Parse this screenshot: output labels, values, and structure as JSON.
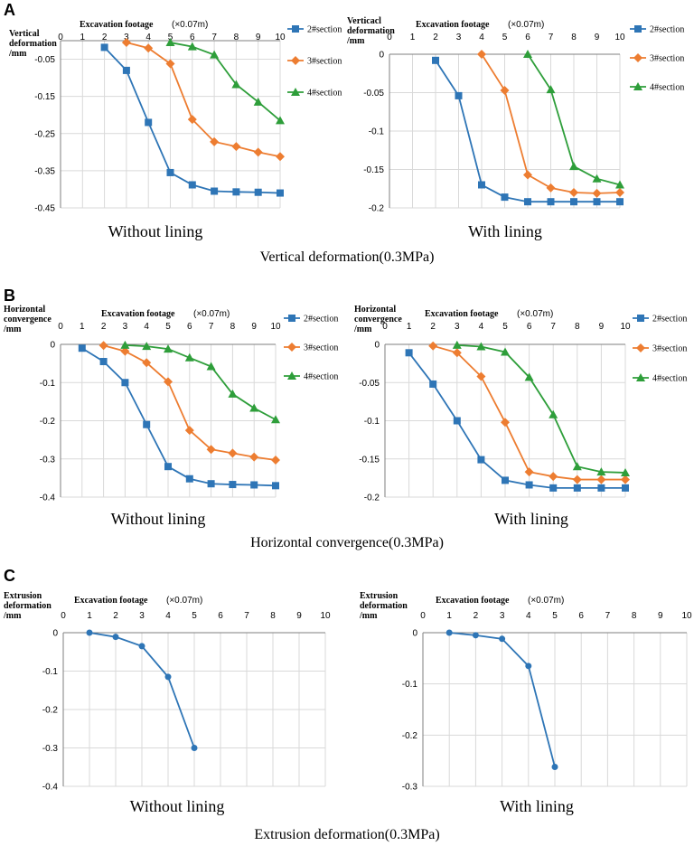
{
  "colors": {
    "s2": "#2E75B6",
    "s3": "#ED7D31",
    "s4": "#2E9E3A",
    "grid": "#D9D9D9",
    "axis": "#7F7F7F"
  },
  "panel_letters": [
    "A",
    "B",
    "C"
  ],
  "section_titles": [
    "Vertical deformation(0.3MPa)",
    "Horizontal convergence(0.3MPa)",
    "Extrusion deformation(0.3MPa)"
  ],
  "chart_data": [
    {
      "type": "line",
      "panel": "A",
      "subtitle": "Without lining",
      "xlabel": "Excavation footage",
      "xlabel_unit": "(×0.07m)",
      "ylabel_lines": [
        "Vertical",
        "deformation",
        "/mm"
      ],
      "xlim": [
        0,
        10
      ],
      "ylim": [
        -0.45,
        0
      ],
      "xticks": [
        0,
        1,
        2,
        3,
        4,
        5,
        6,
        7,
        8,
        9,
        10
      ],
      "yticks": [
        -0.45,
        -0.35,
        -0.25,
        -0.15,
        -0.05
      ],
      "ytick_labels": [
        "-0.45",
        "-0.35",
        "-0.25",
        "-0.15",
        "-0.05"
      ],
      "x_axis_label_0": "0",
      "series": [
        {
          "name": "2#section",
          "marker": "square",
          "x": [
            2,
            3,
            4,
            5,
            6,
            7,
            8,
            9,
            10
          ],
          "values": [
            -0.018,
            -0.08,
            -0.22,
            -0.355,
            -0.388,
            -0.405,
            -0.407,
            -0.408,
            -0.41
          ]
        },
        {
          "name": "3#section",
          "marker": "diamond",
          "x": [
            3,
            4,
            5,
            6,
            7,
            8,
            9,
            10
          ],
          "values": [
            -0.005,
            -0.02,
            -0.062,
            -0.212,
            -0.272,
            -0.285,
            -0.3,
            -0.312
          ]
        },
        {
          "name": "4#section",
          "marker": "triangle",
          "x": [
            5,
            6,
            7,
            8,
            9,
            10
          ],
          "values": [
            -0.005,
            -0.016,
            -0.038,
            -0.118,
            -0.165,
            -0.215
          ]
        }
      ]
    },
    {
      "type": "line",
      "panel": "A",
      "subtitle": "With lining",
      "xlabel": "Excavation footage",
      "xlabel_unit": "(×0.07m)",
      "ylabel_lines": [
        "Verticacl",
        "deformation",
        "/mm"
      ],
      "xlim": [
        0,
        10
      ],
      "ylim": [
        -0.2,
        0
      ],
      "xticks": [
        0,
        1,
        2,
        3,
        4,
        5,
        6,
        7,
        8,
        9,
        10
      ],
      "yticks": [
        0,
        -0.05,
        -0.1,
        -0.15,
        -0.2
      ],
      "ytick_labels": [
        "0",
        "-0.05",
        "-0.1",
        "-0.15",
        "-0.2"
      ],
      "series": [
        {
          "name": "2#section",
          "marker": "square",
          "x": [
            2,
            3,
            4,
            5,
            6,
            7,
            8,
            9,
            10
          ],
          "values": [
            -0.008,
            -0.054,
            -0.17,
            -0.186,
            -0.192,
            -0.192,
            -0.192,
            -0.192,
            -0.192
          ]
        },
        {
          "name": "3#section",
          "marker": "diamond",
          "x": [
            4,
            5,
            6,
            7,
            8,
            9,
            10
          ],
          "values": [
            0,
            -0.047,
            -0.157,
            -0.174,
            -0.18,
            -0.181,
            -0.18
          ]
        },
        {
          "name": "4#section",
          "marker": "triangle",
          "x": [
            6,
            7,
            8,
            9,
            10
          ],
          "values": [
            0,
            -0.046,
            -0.146,
            -0.162,
            -0.17
          ]
        }
      ]
    },
    {
      "type": "line",
      "panel": "B",
      "subtitle": "Without lining",
      "xlabel": "Excavation footage",
      "xlabel_unit": "(×0.07m)",
      "ylabel_lines": [
        "Horizontal",
        "convergence",
        "/mm"
      ],
      "xlim": [
        0,
        10
      ],
      "ylim": [
        -0.4,
        0
      ],
      "xticks": [
        0,
        1,
        2,
        3,
        4,
        5,
        6,
        7,
        8,
        9,
        10
      ],
      "yticks": [
        0,
        -0.1,
        -0.2,
        -0.3,
        -0.4
      ],
      "ytick_labels": [
        "0",
        "-0.1",
        "-0.2",
        "-0.3",
        "-0.4"
      ],
      "series": [
        {
          "name": "2#section",
          "marker": "square",
          "x": [
            1,
            2,
            3,
            4,
            5,
            6,
            7,
            8,
            9,
            10
          ],
          "values": [
            -0.01,
            -0.045,
            -0.1,
            -0.21,
            -0.32,
            -0.352,
            -0.365,
            -0.367,
            -0.368,
            -0.37
          ]
        },
        {
          "name": "3#section",
          "marker": "diamond",
          "x": [
            2,
            3,
            4,
            5,
            6,
            7,
            8,
            9,
            10
          ],
          "values": [
            -0.003,
            -0.018,
            -0.048,
            -0.098,
            -0.225,
            -0.275,
            -0.285,
            -0.295,
            -0.303
          ]
        },
        {
          "name": "4#section",
          "marker": "triangle",
          "x": [
            3,
            4,
            5,
            6,
            7,
            8,
            9,
            10
          ],
          "values": [
            -0.002,
            -0.005,
            -0.012,
            -0.035,
            -0.058,
            -0.13,
            -0.167,
            -0.197
          ]
        }
      ]
    },
    {
      "type": "line",
      "panel": "B",
      "subtitle": "With lining",
      "xlabel": "Excavation footage",
      "xlabel_unit": "(×0.07m)",
      "ylabel_lines": [
        "Horizontal",
        "convergence",
        "/mm"
      ],
      "xlim": [
        0,
        10
      ],
      "ylim": [
        -0.2,
        0
      ],
      "xticks": [
        0,
        1,
        2,
        3,
        4,
        5,
        6,
        7,
        8,
        9,
        10
      ],
      "yticks": [
        0,
        -0.05,
        -0.1,
        -0.15,
        -0.2
      ],
      "ytick_labels": [
        "0",
        "-0.05",
        "-0.1",
        "-0.15",
        "-0.2"
      ],
      "series": [
        {
          "name": "2#section",
          "marker": "square",
          "x": [
            1,
            2,
            3,
            4,
            5,
            6,
            7,
            8,
            9,
            10
          ],
          "values": [
            -0.011,
            -0.052,
            -0.1,
            -0.151,
            -0.178,
            -0.184,
            -0.188,
            -0.188,
            -0.188,
            -0.188
          ]
        },
        {
          "name": "3#section",
          "marker": "diamond",
          "x": [
            2,
            3,
            4,
            5,
            6,
            7,
            8,
            9,
            10
          ],
          "values": [
            -0.002,
            -0.011,
            -0.042,
            -0.102,
            -0.167,
            -0.173,
            -0.177,
            -0.177,
            -0.177
          ]
        },
        {
          "name": "4#section",
          "marker": "triangle",
          "x": [
            3,
            4,
            5,
            6,
            7,
            8,
            9,
            10
          ],
          "values": [
            -0.001,
            -0.003,
            -0.01,
            -0.043,
            -0.092,
            -0.16,
            -0.167,
            -0.168
          ]
        }
      ]
    },
    {
      "type": "line",
      "panel": "C",
      "subtitle": "Without lining",
      "xlabel": "Excavation footage",
      "xlabel_unit": "(×0.07m)",
      "ylabel_lines": [
        "Extrusion",
        "deformation",
        "/mm"
      ],
      "xlim": [
        0,
        10
      ],
      "ylim": [
        -0.4,
        0
      ],
      "xticks": [
        0,
        1,
        2,
        3,
        4,
        5,
        6,
        7,
        8,
        9,
        10
      ],
      "yticks": [
        0,
        -0.1,
        -0.2,
        -0.3,
        -0.4
      ],
      "ytick_labels": [
        "0",
        "-0.1",
        "-0.2",
        "-0.3",
        "-0.4"
      ],
      "series": [
        {
          "name": "",
          "marker": "circle",
          "x": [
            1,
            2,
            3,
            4,
            5
          ],
          "values": [
            0,
            -0.011,
            -0.035,
            -0.115,
            -0.3
          ]
        }
      ]
    },
    {
      "type": "line",
      "panel": "C",
      "subtitle": "With lining",
      "xlabel": "Excavation footage",
      "xlabel_unit": "(×0.07m)",
      "ylabel_lines": [
        "Extrusion",
        "deformation",
        "/mm"
      ],
      "xlim": [
        0,
        10
      ],
      "ylim": [
        -0.3,
        0
      ],
      "xticks": [
        0,
        1,
        2,
        3,
        4,
        5,
        6,
        7,
        8,
        9,
        10
      ],
      "yticks": [
        0,
        -0.1,
        -0.2,
        -0.3
      ],
      "ytick_labels": [
        "0",
        "-0.1",
        "-0.2",
        "-0.3"
      ],
      "series": [
        {
          "name": "",
          "marker": "circle",
          "x": [
            1,
            2,
            3,
            4,
            5
          ],
          "values": [
            0,
            -0.005,
            -0.012,
            -0.065,
            -0.262
          ]
        }
      ]
    }
  ]
}
